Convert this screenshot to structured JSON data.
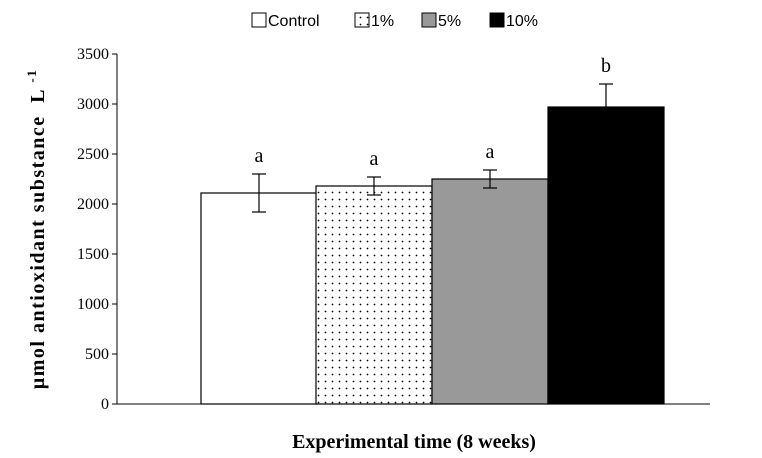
{
  "chart_data": {
    "type": "bar",
    "xlabel": "Experimental time (8 weeks)",
    "ylabel": "µmol antioxidant substance",
    "ylabel_unit": "L",
    "ylabel_unit_exp": "-1",
    "ylim": [
      0,
      3500
    ],
    "yticks": [
      0,
      500,
      1000,
      1500,
      2000,
      2500,
      3000,
      3500
    ],
    "legend_position": "top",
    "grid": false,
    "series": [
      {
        "name": "Control",
        "value": 2110,
        "error": 190,
        "letter": "a",
        "fill": "white",
        "color": "#ffffff"
      },
      {
        "name": "1%",
        "value": 2180,
        "error": 90,
        "letter": "a",
        "fill": "dots",
        "color": "#ffffff"
      },
      {
        "name": "5%",
        "value": 2250,
        "error": 90,
        "letter": "a",
        "fill": "solid",
        "color": "#999999"
      },
      {
        "name": "10%",
        "value": 2970,
        "error": 230,
        "letter": "b",
        "fill": "solid",
        "color": "#000000"
      }
    ]
  }
}
